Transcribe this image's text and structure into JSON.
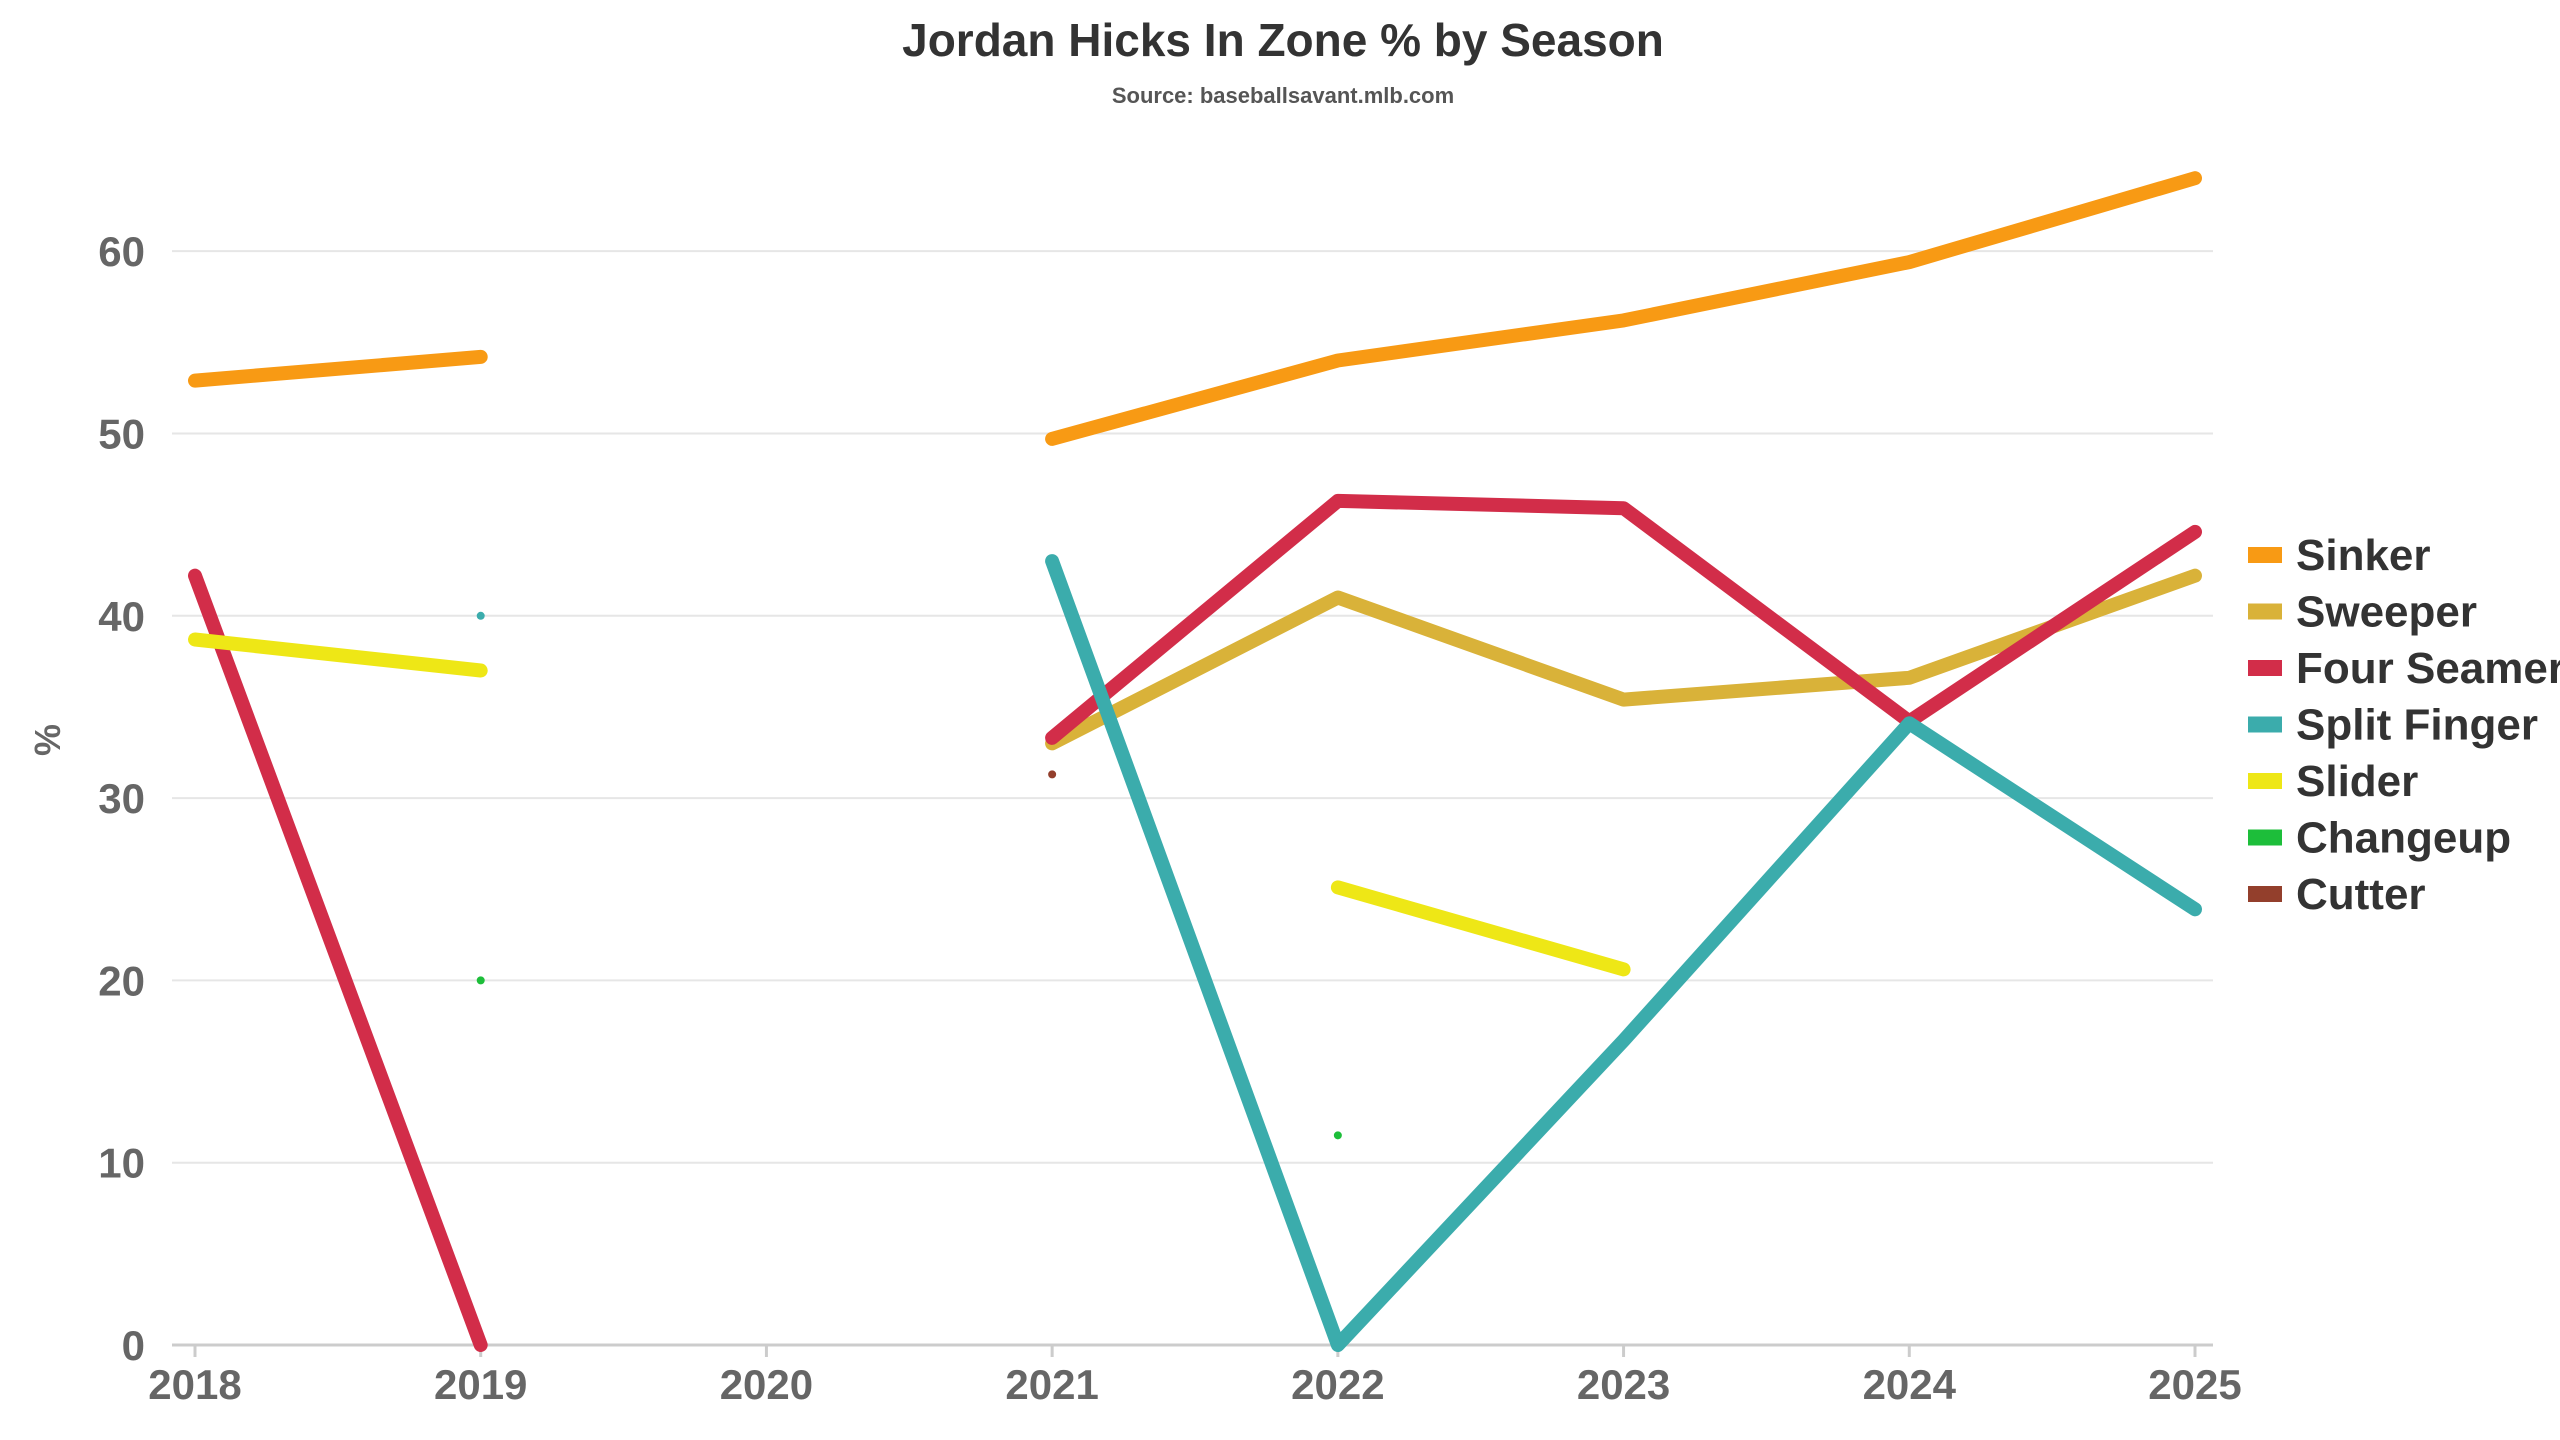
{
  "chart_data": {
    "type": "line",
    "title": "Jordan Hicks In Zone % by Season",
    "subtitle": "Source: baseballsavant.mlb.com",
    "xlabel": "",
    "ylabel": "%",
    "x": [
      2018,
      2019,
      2020,
      2021,
      2022,
      2023,
      2024,
      2025
    ],
    "xlim": [
      2018,
      2025
    ],
    "ylim": [
      0,
      65
    ],
    "yticks": [
      0,
      10,
      20,
      30,
      40,
      50,
      60
    ],
    "grid": true,
    "legend_position": "right",
    "series": [
      {
        "name": "Sinker",
        "color": "#f89a14",
        "values": [
          52.9,
          54.2,
          null,
          49.7,
          54.0,
          56.2,
          59.4,
          64.0
        ]
      },
      {
        "name": "Sweeper",
        "color": "#d9b239",
        "values": [
          null,
          null,
          null,
          33.0,
          41.0,
          35.4,
          36.6,
          42.2
        ]
      },
      {
        "name": "Four Seamer",
        "color": "#d22d49",
        "values": [
          42.2,
          0.0,
          null,
          33.3,
          46.3,
          45.9,
          34.2,
          44.6
        ]
      },
      {
        "name": "Split Finger",
        "color": "#3bacac",
        "values": [
          null,
          40.0,
          null,
          43.0,
          0.0,
          16.7,
          34.1,
          23.9
        ]
      },
      {
        "name": "Slider",
        "color": "#eee716",
        "values": [
          38.7,
          37.0,
          null,
          null,
          25.1,
          20.6,
          null,
          null
        ]
      },
      {
        "name": "Changeup",
        "color": "#1dbe3a",
        "values": [
          null,
          20.0,
          null,
          null,
          11.5,
          null,
          null,
          null
        ]
      },
      {
        "name": "Cutter",
        "color": "#933f2c",
        "values": [
          null,
          null,
          null,
          31.3,
          null,
          null,
          null,
          null
        ]
      }
    ]
  }
}
